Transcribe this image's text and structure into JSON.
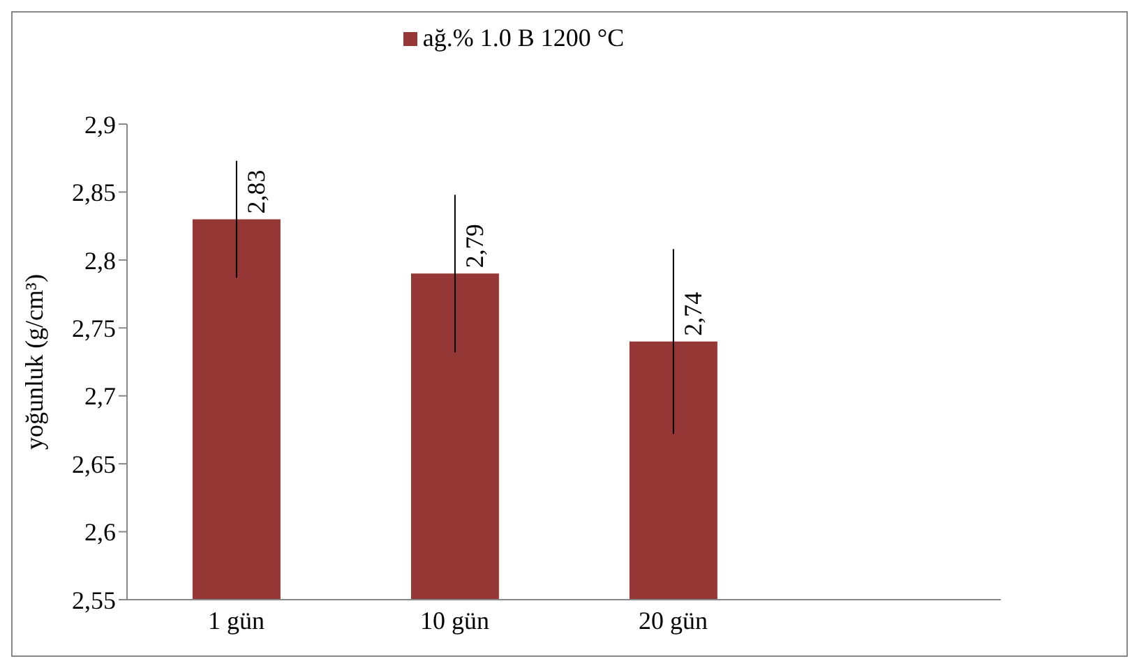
{
  "chart_data": {
    "type": "bar",
    "ylabel": "yoğunluk (g/cm³)",
    "categories": [
      "1 gün",
      "10 gün",
      "20 gün",
      null
    ],
    "series": [
      {
        "name": "ağ.% 1.0 B 1200 °C",
        "color": "#953735",
        "values": [
          2.83,
          2.79,
          2.74,
          null
        ],
        "errors": [
          0.043,
          0.058,
          0.068,
          null
        ],
        "value_labels": [
          "2,83",
          "2,79",
          "2,74",
          null
        ]
      }
    ],
    "ylim": [
      2.55,
      2.9
    ],
    "yticks": [
      {
        "value": 2.55,
        "label": "2,55"
      },
      {
        "value": 2.6,
        "label": "2,6"
      },
      {
        "value": 2.65,
        "label": "2,65"
      },
      {
        "value": 2.7,
        "label": "2,7"
      },
      {
        "value": 2.75,
        "label": "2,75"
      },
      {
        "value": 2.8,
        "label": "2,8"
      },
      {
        "value": 2.85,
        "label": "2,85"
      },
      {
        "value": 2.9,
        "label": "2,9"
      }
    ],
    "grid": false,
    "legend": "top"
  }
}
